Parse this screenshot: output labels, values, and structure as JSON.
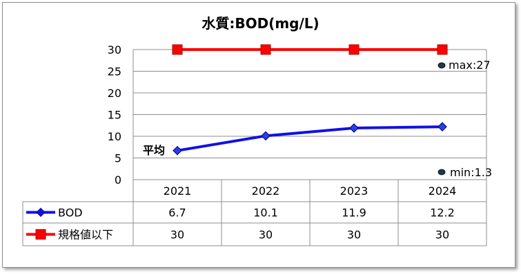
{
  "chart_data": {
    "type": "line",
    "title": "水質:BOD(mg/L)",
    "categories": [
      "2021",
      "2022",
      "2023",
      "2024"
    ],
    "ylim": [
      0,
      30
    ],
    "yticks": [
      0,
      5,
      10,
      15,
      20,
      25,
      30
    ],
    "grid": true,
    "legend": "data-table",
    "series": [
      {
        "name": "BOD",
        "values": [
          6.7,
          10.1,
          11.9,
          12.2
        ],
        "color": "#1010e8",
        "marker": "diamond"
      },
      {
        "name": "規格値以下",
        "values": [
          30,
          30,
          30,
          30
        ],
        "color": "#ff0000",
        "marker": "square"
      }
    ],
    "table": [
      {
        "label": "BOD",
        "values": [
          "6.7",
          "10.1",
          "11.9",
          "12.2"
        ]
      },
      {
        "label": "規格値以下",
        "values": [
          "30",
          "30",
          "30",
          "30"
        ]
      }
    ],
    "annotations": {
      "average": "平均",
      "max": "max:27",
      "min": "min:1.3"
    },
    "annotation_marker_color": "#1f3a4d"
  }
}
